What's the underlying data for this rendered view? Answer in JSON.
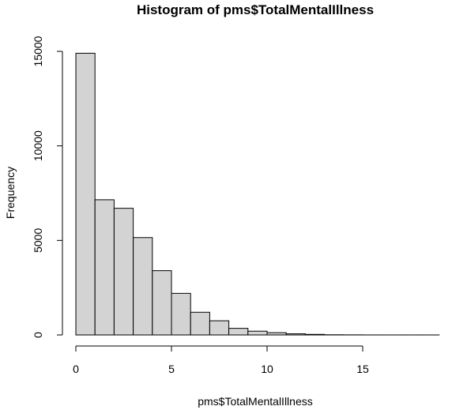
{
  "chart_data": {
    "type": "bar",
    "title": "Histogram of pms$TotalMentalIllness",
    "xlabel": "pms$TotalMentalIllness",
    "ylabel": "Frequency",
    "bins": [
      {
        "x0": 0,
        "x1": 1,
        "count": 14900
      },
      {
        "x0": 1,
        "x1": 2,
        "count": 7150
      },
      {
        "x0": 2,
        "x1": 3,
        "count": 6700
      },
      {
        "x0": 3,
        "x1": 4,
        "count": 5150
      },
      {
        "x0": 4,
        "x1": 5,
        "count": 3400
      },
      {
        "x0": 5,
        "x1": 6,
        "count": 2200
      },
      {
        "x0": 6,
        "x1": 7,
        "count": 1200
      },
      {
        "x0": 7,
        "x1": 8,
        "count": 750
      },
      {
        "x0": 8,
        "x1": 9,
        "count": 350
      },
      {
        "x0": 9,
        "x1": 10,
        "count": 200
      },
      {
        "x0": 10,
        "x1": 11,
        "count": 120
      },
      {
        "x0": 11,
        "x1": 12,
        "count": 60
      },
      {
        "x0": 12,
        "x1": 13,
        "count": 30
      },
      {
        "x0": 13,
        "x1": 14,
        "count": 10
      },
      {
        "x0": 14,
        "x1": 15,
        "count": 5
      },
      {
        "x0": 15,
        "x1": 16,
        "count": 2
      },
      {
        "x0": 16,
        "x1": 17,
        "count": 1
      },
      {
        "x0": 17,
        "x1": 18,
        "count": 1
      },
      {
        "x0": 18,
        "x1": 19,
        "count": 1
      }
    ],
    "xticks": [
      0,
      5,
      10,
      15
    ],
    "xtick_labels": [
      "0",
      "5",
      "10",
      "15"
    ],
    "yticks": [
      0,
      5000,
      10000,
      15000
    ],
    "ytick_labels": [
      "0",
      "5000",
      "10000",
      "15000"
    ],
    "xlim": [
      0,
      19
    ],
    "ylim": [
      0,
      15000
    ],
    "bar_fill": "#d3d3d3",
    "bar_stroke": "#000000",
    "grid": false
  }
}
